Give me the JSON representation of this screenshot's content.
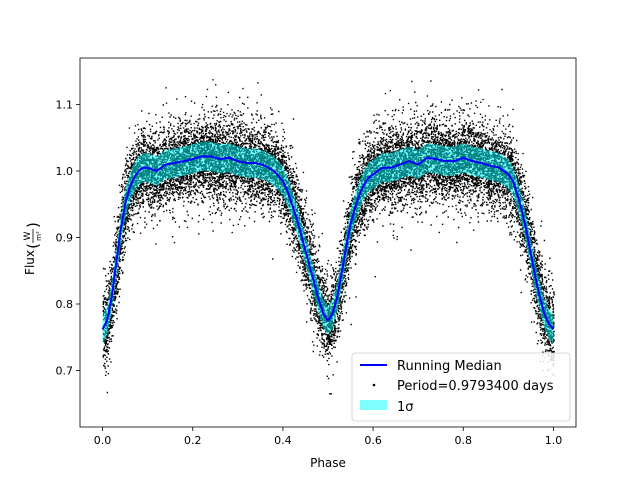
{
  "chart_data": {
    "type": "scatter",
    "title": "",
    "xlabel": "Phase",
    "ylabel_prefix": "Flux",
    "ylabel_unit_numerator": "W",
    "ylabel_unit_denominator": "m²",
    "xlim": [
      -0.05,
      1.05
    ],
    "ylim": [
      0.615,
      1.17
    ],
    "xticks": [
      {
        "value": 0.0,
        "label": "0.0"
      },
      {
        "value": 0.2,
        "label": "0.2"
      },
      {
        "value": 0.4,
        "label": "0.4"
      },
      {
        "value": 0.6,
        "label": "0.6"
      },
      {
        "value": 0.8,
        "label": "0.8"
      },
      {
        "value": 1.0,
        "label": "1.0"
      }
    ],
    "yticks": [
      {
        "value": 0.7,
        "label": "0.7"
      },
      {
        "value": 0.8,
        "label": "0.8"
      },
      {
        "value": 0.9,
        "label": "0.9"
      },
      {
        "value": 1.0,
        "label": "1.0"
      },
      {
        "value": 1.1,
        "label": "1.1"
      }
    ],
    "grid": false,
    "legend_position": "lower-right",
    "series": [
      {
        "name": "Running Median",
        "kind": "line",
        "color": "#0000ff",
        "x": [
          0.0,
          0.01,
          0.02,
          0.03,
          0.04,
          0.05,
          0.06,
          0.07,
          0.08,
          0.09,
          0.1,
          0.12,
          0.14,
          0.16,
          0.18,
          0.2,
          0.22,
          0.24,
          0.26,
          0.28,
          0.3,
          0.32,
          0.34,
          0.36,
          0.38,
          0.4,
          0.41,
          0.42,
          0.43,
          0.44,
          0.45,
          0.46,
          0.47,
          0.48,
          0.49,
          0.5,
          0.51,
          0.52,
          0.53,
          0.54,
          0.55,
          0.56,
          0.57,
          0.58,
          0.59,
          0.6,
          0.62,
          0.64,
          0.66,
          0.68,
          0.7,
          0.72,
          0.74,
          0.76,
          0.78,
          0.8,
          0.82,
          0.84,
          0.86,
          0.88,
          0.9,
          0.91,
          0.92,
          0.93,
          0.94,
          0.95,
          0.96,
          0.97,
          0.98,
          0.99,
          1.0
        ],
        "y": [
          0.762,
          0.775,
          0.81,
          0.86,
          0.91,
          0.95,
          0.975,
          0.99,
          1.0,
          1.005,
          1.005,
          1.0,
          1.01,
          1.012,
          1.015,
          1.018,
          1.022,
          1.022,
          1.018,
          1.02,
          1.015,
          1.012,
          1.012,
          1.008,
          1.0,
          0.985,
          0.97,
          0.95,
          0.93,
          0.905,
          0.88,
          0.855,
          0.83,
          0.805,
          0.785,
          0.775,
          0.785,
          0.81,
          0.845,
          0.885,
          0.92,
          0.945,
          0.965,
          0.98,
          0.99,
          0.995,
          1.005,
          1.005,
          1.01,
          1.015,
          1.01,
          1.02,
          1.018,
          1.015,
          1.015,
          1.02,
          1.015,
          1.012,
          1.008,
          1.005,
          0.995,
          0.985,
          0.965,
          0.94,
          0.91,
          0.875,
          0.84,
          0.81,
          0.785,
          0.77,
          0.762
        ]
      },
      {
        "name": "Period=0.9793400 days",
        "kind": "scatter",
        "color": "#000000",
        "n_points": 16000,
        "scatter_sigma": 0.045
      },
      {
        "name": "1σ",
        "kind": "band",
        "color": "#00ffff",
        "sigma": 0.022
      }
    ]
  }
}
